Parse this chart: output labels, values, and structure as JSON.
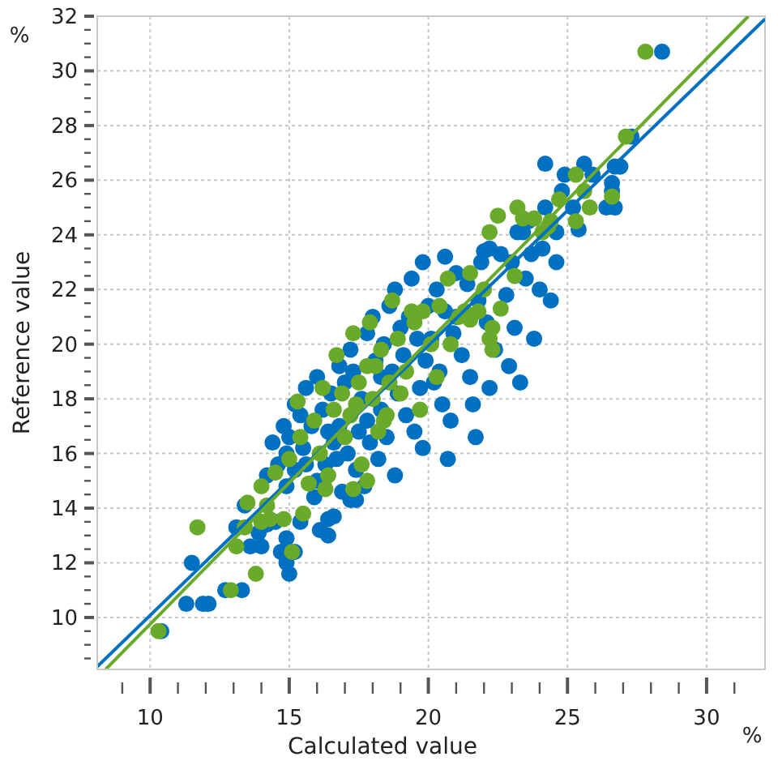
{
  "chart_data": {
    "type": "scatter",
    "xlabel": "Calculated value",
    "ylabel": "Reference value",
    "annotations": [
      "%",
      "%"
    ],
    "xlim": [
      8.1,
      32.1
    ],
    "ylim": [
      8.1,
      32
    ],
    "xticks": [
      {
        "value": 9,
        "label": null
      },
      10,
      {
        "value": 11,
        "label": null
      },
      {
        "value": 12,
        "label": null
      },
      {
        "value": 13,
        "label": null
      },
      {
        "value": 14,
        "label": null
      },
      15,
      {
        "value": 16,
        "label": null
      },
      {
        "value": 17,
        "label": null
      },
      {
        "value": 18,
        "label": null
      },
      {
        "value": 19,
        "label": null
      },
      20,
      {
        "value": 21,
        "label": null
      },
      {
        "value": 22,
        "label": null
      },
      {
        "value": 23,
        "label": null
      },
      {
        "value": 24,
        "label": null
      },
      25,
      {
        "value": 26,
        "label": null
      },
      {
        "value": 27,
        "label": null
      },
      {
        "value": 28,
        "label": null
      },
      {
        "value": 29,
        "label": null
      },
      30,
      {
        "value": 31,
        "label": null
      }
    ],
    "yticks": [
      {
        "value": 8.5,
        "label": null
      },
      {
        "value": 9,
        "label": null
      },
      {
        "value": 9.5,
        "label": null
      },
      10,
      {
        "value": 10.5,
        "label": null
      },
      {
        "value": 11,
        "label": null
      },
      {
        "value": 11.5,
        "label": null
      },
      12,
      {
        "value": 12.5,
        "label": null
      },
      {
        "value": 13,
        "label": null
      },
      {
        "value": 13.5,
        "label": null
      },
      14,
      {
        "value": 14.5,
        "label": null
      },
      {
        "value": 15,
        "label": null
      },
      {
        "value": 15.5,
        "label": null
      },
      16,
      {
        "value": 16.5,
        "label": null
      },
      {
        "value": 17,
        "label": null
      },
      {
        "value": 17.5,
        "label": null
      },
      18,
      {
        "value": 18.5,
        "label": null
      },
      {
        "value": 19,
        "label": null
      },
      {
        "value": 19.5,
        "label": null
      },
      20,
      {
        "value": 20.5,
        "label": null
      },
      {
        "value": 21,
        "label": null
      },
      {
        "value": 21.5,
        "label": null
      },
      22,
      {
        "value": 22.5,
        "label": null
      },
      {
        "value": 23,
        "label": null
      },
      {
        "value": 23.5,
        "label": null
      },
      24,
      {
        "value": 24.5,
        "label": null
      },
      {
        "value": 25,
        "label": null
      },
      {
        "value": 25.5,
        "label": null
      },
      26,
      {
        "value": 26.5,
        "label": null
      },
      {
        "value": 27,
        "label": null
      },
      {
        "value": 27.5,
        "label": null
      },
      28,
      {
        "value": 28.5,
        "label": null
      },
      {
        "value": 29,
        "label": null
      },
      {
        "value": 29.5,
        "label": null
      },
      30,
      {
        "value": 30.5,
        "label": null
      },
      {
        "value": 31,
        "label": null
      },
      {
        "value": 31.5,
        "label": null
      },
      32
    ],
    "grid": true,
    "series": [
      {
        "color": "#0070c0",
        "marker": "circle",
        "x": [
          28.4,
          27.3,
          26.7,
          26.9,
          24.2,
          25.6,
          24.9,
          25.9,
          26.6,
          26.6,
          24.8,
          25.2,
          26.4,
          26.7,
          24.2,
          23.6,
          23.2,
          23.4,
          24.6,
          25.4,
          22.2,
          22.6,
          23.7,
          24.1,
          23.0,
          21.9,
          24.6,
          10.4,
          11.3,
          11.9,
          12.1,
          11.5,
          12.7,
          13.3,
          13.1,
          13.6,
          14.0,
          14.9,
          14.7,
          15.2,
          14.9,
          15.0,
          16.4,
          16.1,
          16.4,
          16.6,
          13.4,
          13.9,
          14.2,
          14.5,
          14.9,
          15.4,
          17.2,
          17.4,
          14.2,
          14.6,
          14.9,
          15.2,
          15.5,
          15.0,
          15.8,
          15.4,
          16.0,
          16.3,
          16.6,
          16.2,
          16.5,
          16.8,
          17.1,
          17.4,
          17.0,
          17.3,
          17.6,
          17.8,
          17.9,
          18.2,
          18.5,
          18.1,
          18.4,
          18.7,
          18.9,
          19.2,
          19.5,
          19.0,
          19.3,
          19.6,
          19.9,
          20.2,
          20.5,
          20.0,
          20.3,
          20.6,
          20.9,
          21.2,
          21.5,
          21.0,
          21.4,
          21.8,
          22.1,
          22.4,
          22.8,
          23.1,
          19.4,
          18.6,
          17.8,
          17.2,
          16.8,
          16.0,
          15.6,
          15.2,
          14.8,
          14.4,
          16.9,
          17.7,
          18.8,
          19.8,
          20.8,
          21.6,
          22.2,
          22.9,
          23.3,
          20.4,
          19.7,
          18.3,
          17.5,
          16.7,
          15.9,
          18.0,
          18.8,
          19.8,
          20.6,
          22.0,
          18.3,
          19.1,
          20.1,
          21.0,
          16.4,
          15.6,
          20.7,
          21.7,
          23.5,
          24.0,
          24.4,
          23.8
        ],
        "values": [
          30.7,
          27.6,
          26.5,
          26.5,
          26.6,
          26.6,
          26.2,
          26.2,
          25.9,
          25.6,
          25.6,
          25.0,
          25.0,
          25.0,
          25.0,
          24.5,
          24.1,
          24.1,
          24.1,
          24.2,
          23.5,
          23.3,
          23.3,
          23.5,
          23.0,
          23.0,
          23.0,
          9.5,
          10.5,
          10.5,
          10.5,
          12.0,
          11.0,
          11.0,
          13.3,
          12.6,
          12.6,
          12.9,
          12.4,
          12.4,
          12.0,
          11.6,
          13.0,
          13.2,
          13.6,
          13.7,
          14.1,
          13.1,
          13.4,
          13.5,
          14.8,
          13.5,
          14.3,
          14.3,
          15.2,
          15.6,
          16.0,
          15.4,
          16.2,
          16.6,
          17.0,
          17.4,
          15.0,
          15.6,
          16.4,
          17.6,
          18.2,
          17.0,
          16.0,
          15.4,
          18.6,
          19.0,
          18.0,
          17.2,
          16.4,
          15.8,
          16.6,
          19.4,
          20.0,
          19.0,
          18.2,
          17.4,
          16.8,
          20.6,
          21.0,
          20.2,
          19.4,
          18.6,
          17.8,
          21.4,
          22.0,
          21.2,
          20.4,
          19.6,
          18.8,
          22.6,
          22.2,
          21.6,
          20.8,
          19.8,
          21.8,
          20.6,
          22.4,
          21.4,
          20.4,
          19.8,
          19.2,
          18.8,
          18.4,
          17.8,
          17.0,
          16.4,
          14.6,
          14.8,
          15.2,
          16.2,
          17.2,
          17.8,
          18.4,
          19.2,
          18.6,
          19.0,
          18.4,
          17.6,
          16.8,
          15.8,
          14.4,
          21.0,
          22.0,
          23.0,
          23.2,
          23.4,
          18.8,
          19.6,
          20.2,
          21.0,
          16.8,
          15.6,
          15.8,
          16.6,
          22.4,
          22.0,
          21.6,
          20.2
        ]
      },
      {
        "color": "#6aaa2a",
        "marker": "circle",
        "x": [
          27.8,
          27.1,
          25.3,
          25.6,
          22.2,
          22.5,
          23.2,
          23.4,
          23.8,
          24.7,
          24.4,
          25.3,
          24.1,
          24.3,
          26.6,
          25.8,
          23.1,
          22.0,
          21.1,
          21.3,
          21.8,
          21.5,
          22.3,
          22.2,
          21.5,
          20.8,
          22.6,
          22.3,
          10.3,
          11.7,
          12.9,
          13.1,
          13.8,
          13.5,
          13.4,
          14.0,
          14.3,
          14.8,
          15.5,
          15.1,
          14.2,
          16.3,
          17.3,
          17.8,
          14.0,
          14.5,
          15.0,
          15.4,
          15.9,
          16.1,
          16.6,
          16.9,
          17.2,
          17.5,
          17.8,
          18.0,
          18.3,
          18.6,
          18.9,
          19.2,
          19.5,
          19.8,
          20.1,
          20.4,
          17.0,
          17.6,
          18.2,
          18.5,
          19.0,
          16.4,
          15.7,
          17.3,
          16.7,
          18.7,
          19.4,
          20.7,
          17.9,
          18.4,
          19.7,
          20.3,
          16.2,
          15.3,
          18.1,
          17.4
        ],
        "values": [
          30.7,
          27.6,
          26.2,
          25.6,
          24.1,
          24.7,
          25.0,
          24.6,
          24.6,
          25.3,
          24.5,
          24.5,
          24.1,
          24.3,
          25.4,
          25.0,
          22.5,
          22.0,
          21.0,
          21.2,
          21.2,
          20.9,
          20.6,
          20.2,
          22.6,
          20.0,
          21.3,
          19.8,
          9.5,
          13.3,
          11.0,
          12.6,
          11.6,
          14.2,
          13.3,
          13.5,
          13.6,
          13.6,
          13.8,
          12.4,
          14.1,
          14.7,
          14.7,
          15.0,
          14.8,
          15.3,
          15.8,
          16.6,
          17.2,
          16.0,
          17.6,
          18.2,
          17.4,
          18.6,
          19.2,
          18.0,
          19.8,
          18.6,
          20.2,
          19.0,
          20.8,
          21.2,
          20.0,
          21.4,
          16.6,
          15.6,
          16.8,
          17.4,
          18.2,
          15.2,
          14.9,
          20.4,
          19.6,
          21.6,
          21.2,
          22.4,
          20.8,
          17.2,
          17.6,
          18.8,
          18.4,
          17.9,
          19.2,
          17.8
        ]
      },
      {
        "type": "line",
        "color": "#0070c0",
        "x": [
          8.1,
          32.1
        ],
        "values": [
          8.2,
          31.9
        ]
      },
      {
        "type": "line",
        "color": "#6aaa2a",
        "x": [
          8.4,
          31.5
        ],
        "values": [
          8.1,
          32
        ]
      }
    ]
  }
}
